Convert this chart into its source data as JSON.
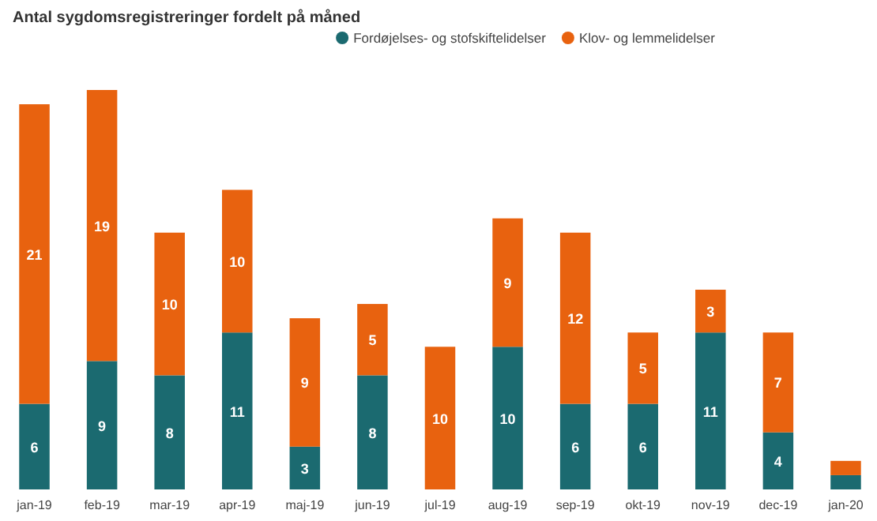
{
  "chart_data": {
    "type": "bar",
    "title": "Antal sygdomsregistreringer fordelt på måned",
    "categories": [
      "jan-19",
      "feb-19",
      "mar-19",
      "apr-19",
      "maj-19",
      "jun-19",
      "jul-19",
      "aug-19",
      "sep-19",
      "okt-19",
      "nov-19",
      "dec-19",
      "jan-20"
    ],
    "stacked": true,
    "legend": "top",
    "tick_labels": "x",
    "series": [
      {
        "name": "Fordøjelses- og stofskiftelidelser",
        "color": "#1b6a70",
        "values": [
          6,
          9,
          8,
          11,
          3,
          8,
          null,
          10,
          6,
          6,
          11,
          4,
          1
        ],
        "value_labels": [
          "6",
          "9",
          "8",
          "11",
          "3",
          "8",
          null,
          "10",
          "6",
          "6",
          "11",
          "4",
          null
        ]
      },
      {
        "name": "Klov- og lemmelidelser",
        "color": "#e8620f",
        "values": [
          21,
          19,
          10,
          10,
          9,
          5,
          10,
          9,
          12,
          5,
          3,
          7,
          1
        ],
        "value_labels": [
          "21",
          "19",
          "10",
          "10",
          "9",
          "5",
          "10",
          "9",
          "12",
          "5",
          "3",
          "7",
          null
        ]
      }
    ]
  }
}
